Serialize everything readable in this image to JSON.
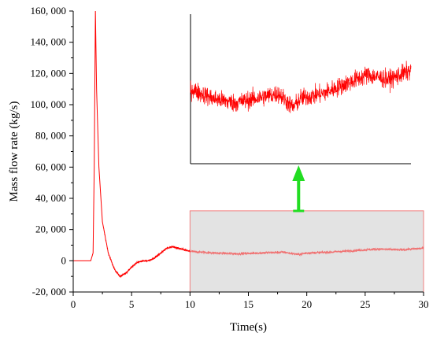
{
  "chart_data": {
    "type": "line",
    "xlabel": "Time(s)",
    "ylabel": "Mass flow rate (kg/s)",
    "xlim": [
      0,
      30
    ],
    "ylim": [
      -20000,
      160000
    ],
    "x_ticks": [
      0,
      5,
      10,
      15,
      20,
      25,
      30
    ],
    "x_tick_labels": [
      "0",
      "5",
      "10",
      "15",
      "20",
      "25",
      "30"
    ],
    "y_ticks": [
      -20000,
      0,
      20000,
      40000,
      60000,
      80000,
      100000,
      120000,
      140000,
      160000
    ],
    "y_tick_labels": [
      "-20, 000",
      "0",
      "20, 000",
      "40, 000",
      "60, 000",
      "80, 000",
      "100, 000",
      "120, 000",
      "140, 000",
      "160, 000"
    ],
    "grid": false,
    "colors": {
      "main_line": "#ff0000",
      "highlight_line": "#f07070",
      "highlight_fill": "#e3e3e3",
      "highlight_border": "#f08080",
      "arrow": "#22dd22"
    },
    "series": [
      {
        "x": [
          0,
          1.5,
          1.7,
          1.8,
          1.9,
          2.0,
          2.2,
          2.5,
          3.0,
          3.5,
          4.0,
          4.5,
          5.0,
          5.5,
          6.0,
          6.5,
          7.0,
          7.5,
          8.0,
          8.5,
          9.0,
          9.5,
          10.0
        ],
        "y": [
          0,
          0,
          5000,
          60000,
          160000,
          110000,
          60000,
          25000,
          5000,
          -5000,
          -10000,
          -8000,
          -4000,
          -1000,
          0,
          0,
          2000,
          5000,
          8000,
          9000,
          8000,
          7000,
          6000
        ]
      }
    ],
    "highlight_region": {
      "x": [
        10,
        30
      ],
      "y": [
        -20000,
        32000
      ],
      "x_trend": [
        10,
        12,
        14,
        16,
        18,
        19.3,
        20,
        22,
        24,
        26,
        28,
        30
      ],
      "y_trend": [
        6000,
        5000,
        4500,
        5000,
        5500,
        4000,
        5000,
        5500,
        6500,
        7500,
        7000,
        8000
      ]
    },
    "inset": {
      "x_range": [
        10,
        30
      ],
      "y_range": [
        -2000,
        14000
      ],
      "x_trend": [
        10,
        12,
        14,
        16,
        18,
        19.3,
        20,
        22,
        24,
        26,
        28,
        30
      ],
      "y_trend": [
        6000,
        5000,
        4500,
        5000,
        5500,
        4000,
        5000,
        5500,
        6500,
        7500,
        7000,
        8000
      ]
    }
  }
}
